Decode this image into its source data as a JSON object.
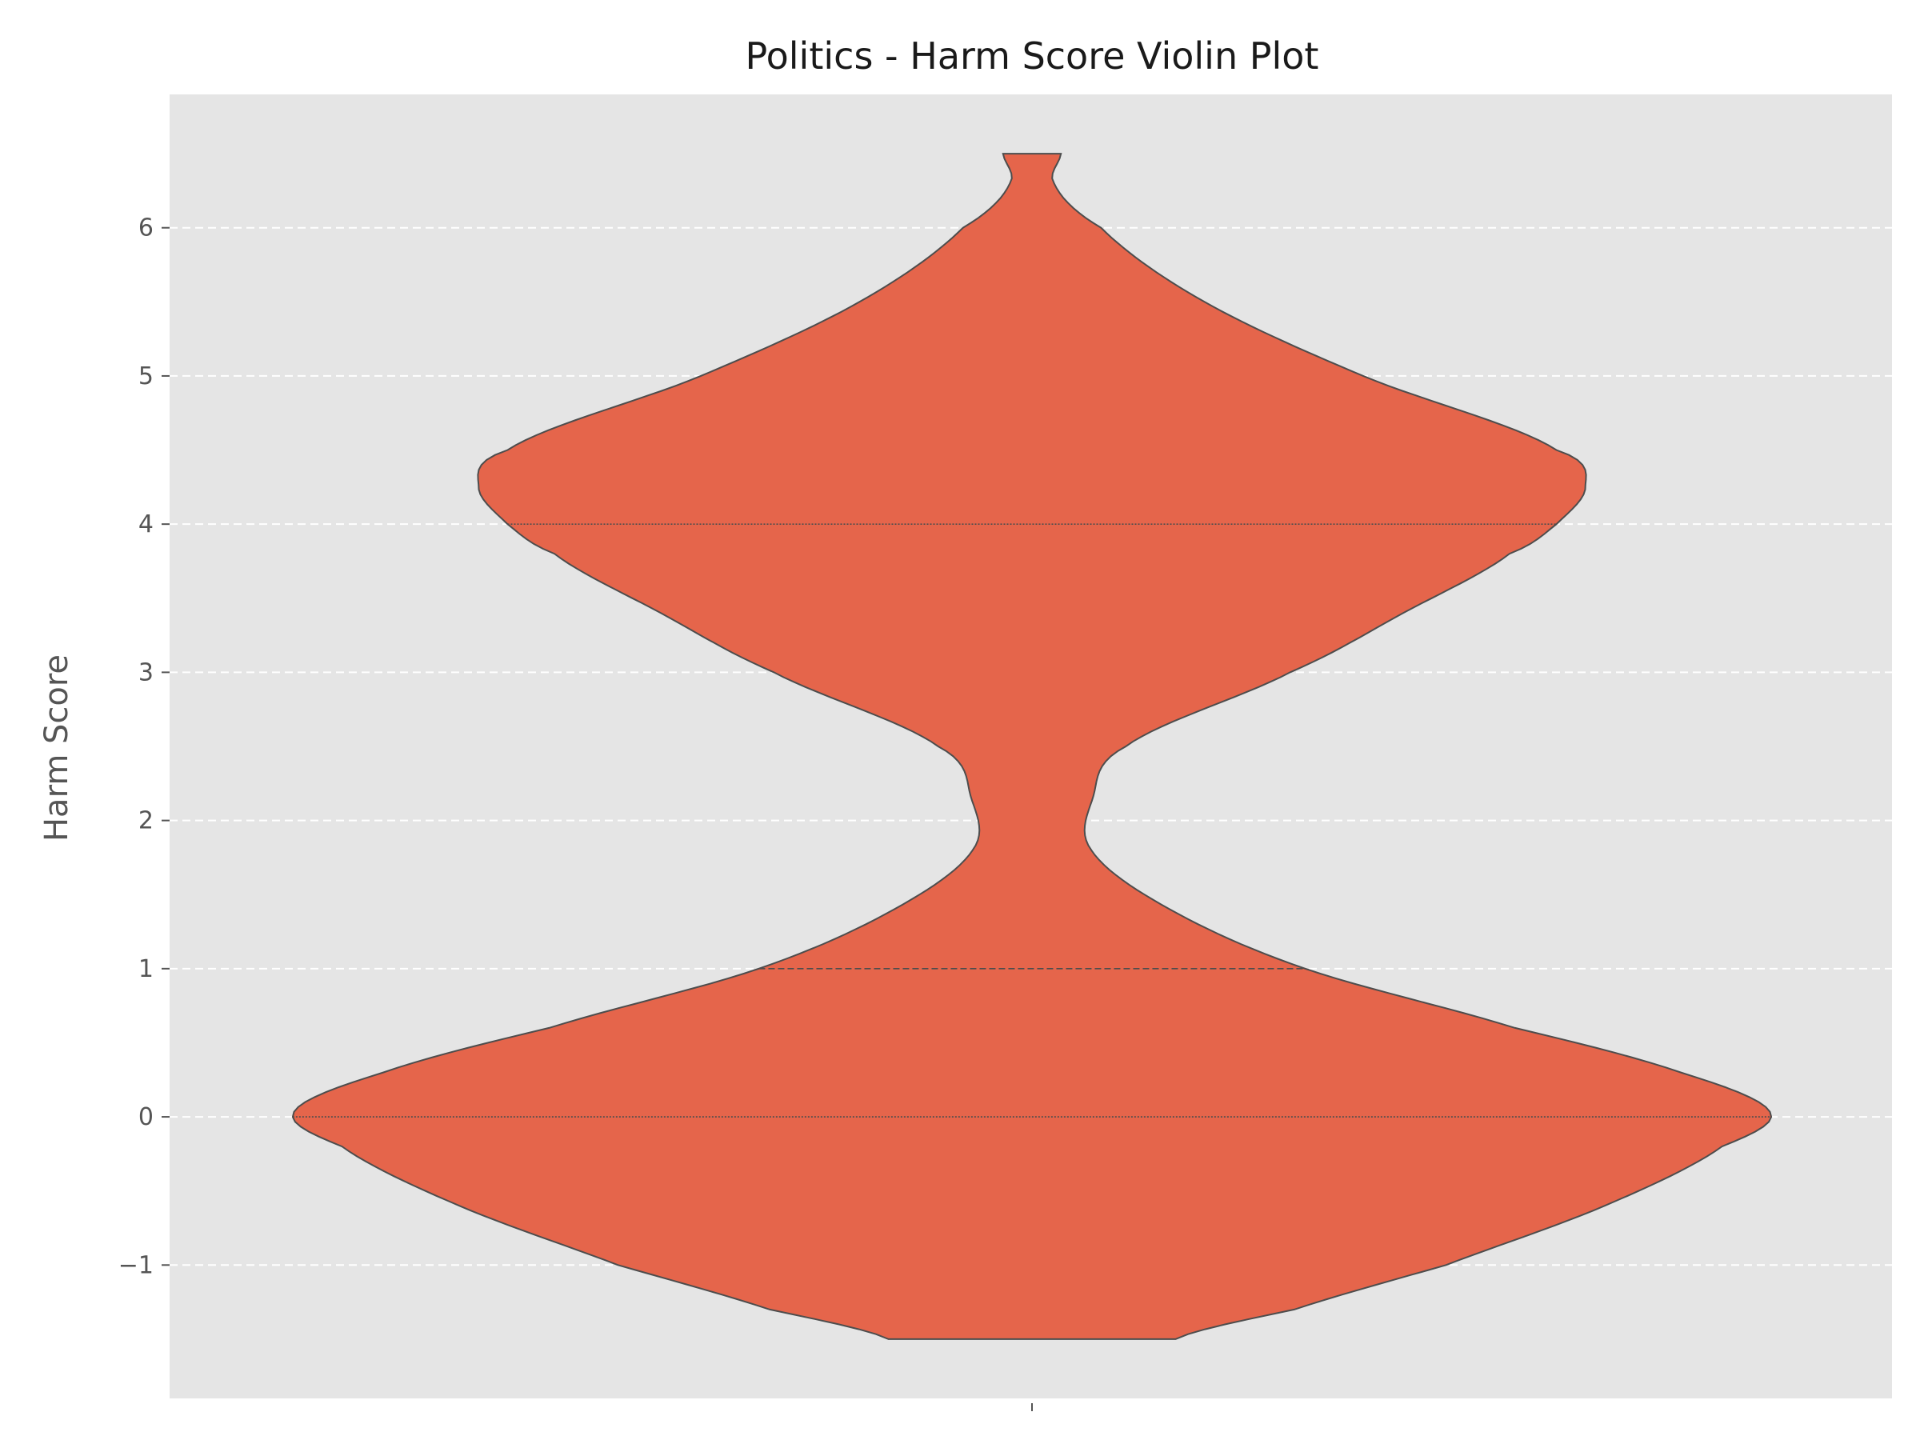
{
  "chart_data": {
    "type": "violin",
    "title": "Politics - Harm Score Violin Plot",
    "xlabel": "",
    "ylabel": "Harm Score",
    "ylim": [
      -1.9,
      6.9
    ],
    "yticks": [
      -1,
      0,
      1,
      2,
      3,
      4,
      5,
      6
    ],
    "ytick_labels": [
      "−1",
      "0",
      "1",
      "2",
      "3",
      "4",
      "5",
      "6"
    ],
    "grid": {
      "y": true,
      "style": "dashed"
    },
    "density_profile": {
      "y": [
        -1.5,
        -1.3,
        -1.0,
        -0.6,
        -0.2,
        0.03,
        0.3,
        0.6,
        1.0,
        1.4,
        1.8,
        2.15,
        2.5,
        3.0,
        3.4,
        3.8,
        4.0,
        4.25,
        4.5,
        5.0,
        5.5,
        6.0,
        6.3,
        6.5
      ],
      "half_width": [
        0.104,
        0.19,
        0.3,
        0.415,
        0.5,
        0.535,
        0.47,
        0.35,
        0.198,
        0.1,
        0.043,
        0.044,
        0.068,
        0.187,
        0.269,
        0.346,
        0.38,
        0.401,
        0.38,
        0.24,
        0.125,
        0.05,
        0.016,
        0.021
      ]
    },
    "quartile_lines": [
      {
        "value": 0,
        "style": "dotted"
      },
      {
        "value": 1,
        "style": "dashed"
      },
      {
        "value": 4,
        "style": "dotted"
      }
    ],
    "colors": {
      "violin_fill": "#e5654b",
      "violin_edge": "#4d4d4d",
      "plot_background": "#e5e5e5",
      "grid": "#ffffff",
      "tick": "#555555"
    }
  }
}
